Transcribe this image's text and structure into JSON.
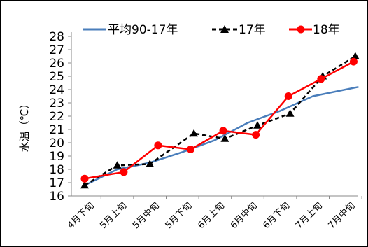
{
  "chart_data": {
    "type": "line",
    "title": "",
    "ylabel": "水温（℃）",
    "xlabel": "",
    "ylim": [
      16,
      28
    ],
    "yticks": [
      16,
      17,
      18,
      19,
      20,
      21,
      22,
      23,
      24,
      25,
      26,
      27,
      28
    ],
    "grid": false,
    "legend_position": "top",
    "series": [
      {
        "name": "平均90-17年",
        "color": "#4a7ebb",
        "style": "solid",
        "marker": "none",
        "x": [
          "4月下旬",
          "5月上旬",
          "5月中旬",
          "5月下旬",
          "6月上旬",
          "6月中旬",
          "6月下旬",
          "7月上旬",
          "7月中旬"
        ],
        "values": [
          16.8,
          18.0,
          18.5,
          19.3,
          20.2,
          21.5,
          22.4,
          23.5,
          24.2
        ]
      },
      {
        "name": "17年",
        "color": "#000000",
        "style": "dashed",
        "marker": "triangle",
        "x": [
          "4月下旬",
          "5月上旬",
          "5月中旬",
          "5月下旬",
          "5月下旬",
          "6月上旬",
          "6月中旬",
          "6月下旬",
          "7月上旬",
          "7月中旬"
        ],
        "values": [
          16.8,
          18.3,
          18.4,
          null,
          20.7,
          20.3,
          21.3,
          22.2,
          25.0,
          26.5
        ],
        "_note": "points sampled at 9 categories plus a mid-point between 5月下旬 and 6月上旬"
      },
      {
        "name": "18年",
        "color": "#ff0000",
        "style": "solid",
        "marker": "circle",
        "x": [
          "4月下旬",
          "5月上旬",
          "5月中旬",
          "5月下旬",
          "6月上旬",
          "6月中旬",
          "6月下旬",
          "7月上旬",
          "7月中旬"
        ],
        "values": [
          17.3,
          17.8,
          19.8,
          19.5,
          20.9,
          20.6,
          23.5,
          24.8,
          26.1
        ]
      }
    ],
    "points_17": [
      {
        "pos": 0,
        "value": 16.8
      },
      {
        "pos": 1,
        "value": 18.3
      },
      {
        "pos": 2,
        "value": 18.4
      },
      {
        "pos": 3.35,
        "value": 20.7
      },
      {
        "pos": 4.3,
        "value": 20.3
      },
      {
        "pos": 5.3,
        "value": 21.3
      },
      {
        "pos": 6.3,
        "value": 22.2
      },
      {
        "pos": 7.3,
        "value": 25.0
      },
      {
        "pos": 8.3,
        "value": 26.5
      }
    ],
    "points_18": [
      {
        "pos": 0,
        "value": 17.3
      },
      {
        "pos": 1.2,
        "value": 17.8
      },
      {
        "pos": 2.25,
        "value": 19.8
      },
      {
        "pos": 3.25,
        "value": 19.5
      },
      {
        "pos": 4.25,
        "value": 20.9
      },
      {
        "pos": 5.25,
        "value": 20.6
      },
      {
        "pos": 6.25,
        "value": 23.5
      },
      {
        "pos": 7.25,
        "value": 24.8
      },
      {
        "pos": 8.25,
        "value": 26.1
      }
    ],
    "points_avg": [
      {
        "pos": 0,
        "value": 16.8
      },
      {
        "pos": 1,
        "value": 18.0
      },
      {
        "pos": 2,
        "value": 18.5
      },
      {
        "pos": 3,
        "value": 19.3
      },
      {
        "pos": 4,
        "value": 20.2
      },
      {
        "pos": 5,
        "value": 21.5
      },
      {
        "pos": 6,
        "value": 22.4
      },
      {
        "pos": 7,
        "value": 23.5
      },
      {
        "pos": 8.4,
        "value": 24.2
      }
    ],
    "categories": [
      "4月下旬",
      "5月上旬",
      "5月中旬",
      "5月下旬",
      "6月上旬",
      "6月中旬",
      "6月下旬",
      "7月上旬",
      "7月中旬"
    ]
  }
}
